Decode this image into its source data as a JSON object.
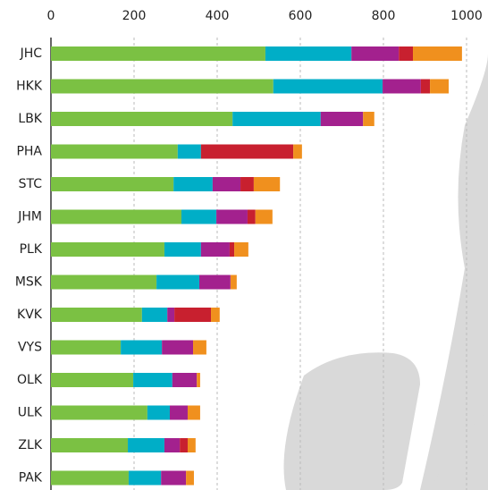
{
  "chart_data": {
    "type": "stacked-bar-horizontal",
    "categories": [
      "JHC",
      "HKK",
      "LBK",
      "PHA",
      "STC",
      "JHM",
      "PLK",
      "MSK",
      "KVK",
      "VYS",
      "OLK",
      "ULK",
      "ZLK",
      "PAK"
    ],
    "series": [
      {
        "color": "#7bc143",
        "values": [
          516,
          535,
          437,
          305,
          295,
          314,
          273,
          254,
          219,
          168,
          198,
          232,
          185,
          187
        ]
      },
      {
        "color": "#00aec7",
        "values": [
          207,
          263,
          212,
          56,
          94,
          84,
          88,
          103,
          61,
          99,
          94,
          54,
          88,
          78
        ]
      },
      {
        "color": "#a3218e",
        "values": [
          114,
          92,
          102,
          0,
          67,
          75,
          69,
          75,
          17,
          75,
          59,
          43,
          37,
          60
        ]
      },
      {
        "color": "#c8202f",
        "values": [
          34,
          22,
          0,
          222,
          32,
          19,
          11,
          0,
          88,
          0,
          0,
          0,
          19,
          0
        ]
      },
      {
        "color": "#f0901e",
        "values": [
          118,
          45,
          27,
          21,
          63,
          41,
          34,
          15,
          21,
          32,
          8,
          30,
          19,
          19
        ]
      }
    ],
    "xlim": [
      0,
      1000
    ],
    "xticks": [
      0,
      200,
      400,
      600,
      800,
      1000
    ],
    "grid": true
  }
}
